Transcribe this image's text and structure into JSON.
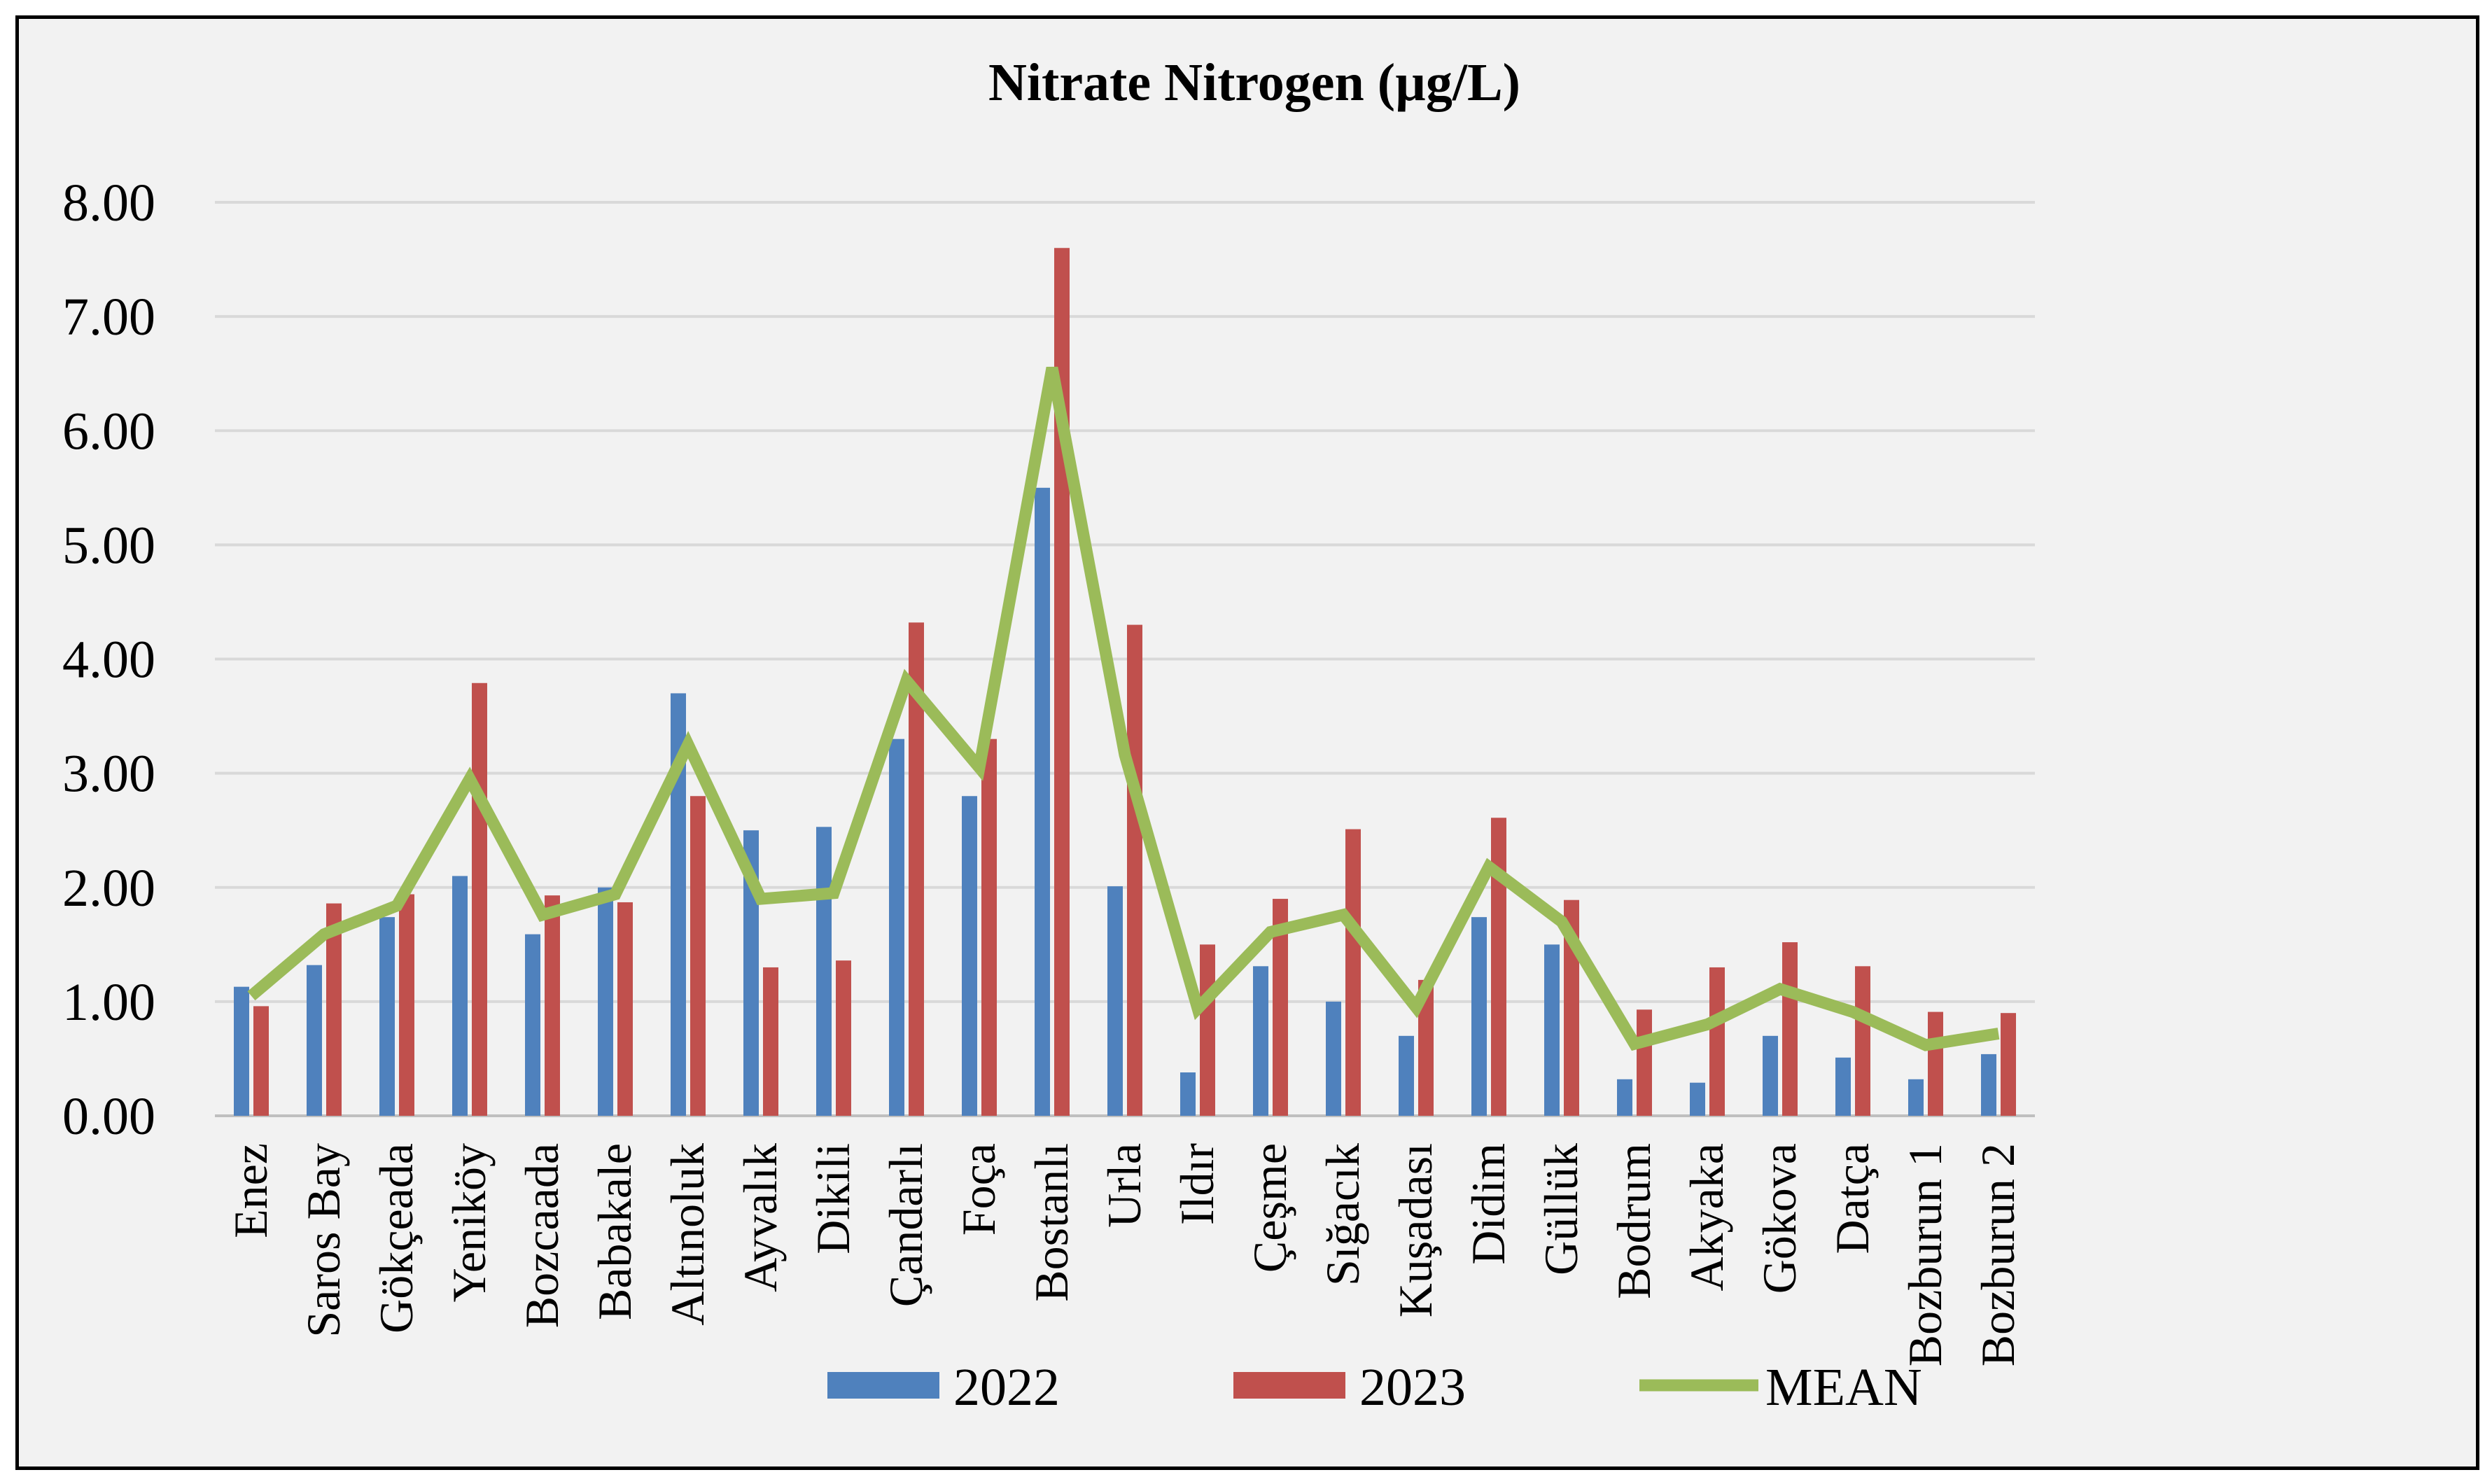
{
  "chart_data": {
    "type": "bar",
    "title": "Nitrate Nitrogen (µg/L)",
    "xlabel": "",
    "ylabel": "",
    "ylim": [
      0,
      8
    ],
    "yticks": [
      "0.00",
      "1.00",
      "2.00",
      "3.00",
      "4.00",
      "5.00",
      "6.00",
      "7.00",
      "8.00"
    ],
    "grid": true,
    "legend_position": "bottom",
    "categories": [
      "Enez",
      "Saros Bay",
      "Gökçeada",
      "Yeniköy",
      "Bozcaada",
      "Babakale",
      "Altınoluk",
      "Ayvalık",
      "Dikili",
      "Çandarlı",
      "Foça",
      "Bostanlı",
      "Urla",
      "Ildır",
      "Çeşme",
      "Sığacık",
      "Kuşadası",
      "Didim",
      "Güllük",
      "Bodrum",
      "Akyaka",
      "Gökova",
      "Datça",
      "Bozburun 1",
      "Bozburun 2"
    ],
    "series": [
      {
        "name": "2022",
        "type": "bar",
        "color": "#4f81bd",
        "values": [
          1.13,
          1.32,
          1.74,
          2.1,
          1.59,
          2.0,
          3.7,
          2.5,
          2.53,
          3.3,
          2.8,
          5.5,
          2.01,
          0.38,
          1.31,
          1.0,
          0.7,
          1.74,
          1.5,
          0.32,
          0.29,
          0.7,
          0.51,
          0.32,
          0.54
        ]
      },
      {
        "name": "2023",
        "type": "bar",
        "color": "#c0504d",
        "values": [
          0.96,
          1.86,
          1.94,
          3.79,
          1.93,
          1.87,
          2.8,
          1.3,
          1.36,
          4.32,
          3.3,
          7.6,
          4.3,
          1.5,
          1.9,
          2.51,
          1.19,
          2.61,
          1.89,
          0.93,
          1.3,
          1.52,
          1.31,
          0.91,
          0.9
        ]
      },
      {
        "name": "MEAN",
        "type": "line",
        "color": "#9bbb59",
        "values": [
          1.05,
          1.59,
          1.84,
          2.95,
          1.76,
          1.94,
          3.25,
          1.9,
          1.95,
          3.81,
          3.05,
          6.55,
          3.16,
          0.94,
          1.61,
          1.76,
          0.95,
          2.18,
          1.7,
          0.63,
          0.8,
          1.11,
          0.91,
          0.62,
          0.72
        ]
      }
    ]
  }
}
